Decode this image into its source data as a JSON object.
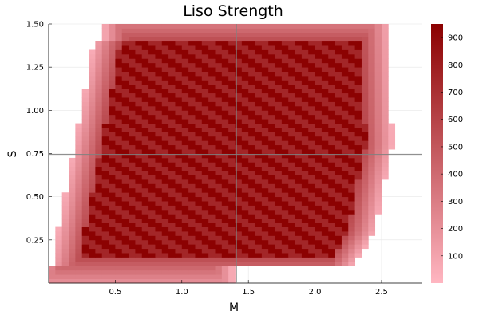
{
  "chart_data": {
    "type": "heatmap",
    "title": "Liso Strength",
    "xlabel": "M",
    "ylabel": "S",
    "xlim": [
      0.0,
      2.8
    ],
    "ylim": [
      0.0,
      1.5
    ],
    "xticks": [
      0.5,
      1.0,
      1.5,
      2.0,
      2.5
    ],
    "xtick_labels": [
      "0.5",
      "1.0",
      "1.5",
      "2.0",
      "2.5"
    ],
    "yticks": [
      0.25,
      0.5,
      0.75,
      1.0,
      1.25,
      1.5
    ],
    "ytick_labels": [
      "0.25",
      "0.50",
      "0.75",
      "1.00",
      "1.25",
      "1.50"
    ],
    "crosshair": {
      "x": 1.41,
      "y": 0.745
    },
    "colorbar": {
      "range": [
        0,
        950
      ],
      "ticks": [
        100,
        200,
        300,
        400,
        500,
        600,
        700,
        800,
        900
      ],
      "tick_labels": [
        "100",
        "200",
        "300",
        "400",
        "500",
        "600",
        "700",
        "800",
        "900"
      ],
      "colors": [
        "#ffb6c1",
        "#8b0000"
      ]
    },
    "grid": true,
    "region": {
      "left_edge": [
        [
          0.0,
          0.0
        ],
        [
          0.18,
          0.75
        ],
        [
          0.34,
          1.4
        ],
        [
          0.35,
          1.4
        ]
      ],
      "right_edge": [
        [
          2.55,
          1.5
        ],
        [
          2.58,
          0.8
        ],
        [
          2.45,
          0.3
        ],
        [
          2.28,
          0.1
        ]
      ],
      "top": 1.5,
      "bottom": 0.0,
      "peak_value": 940,
      "edge_value": 60
    }
  }
}
